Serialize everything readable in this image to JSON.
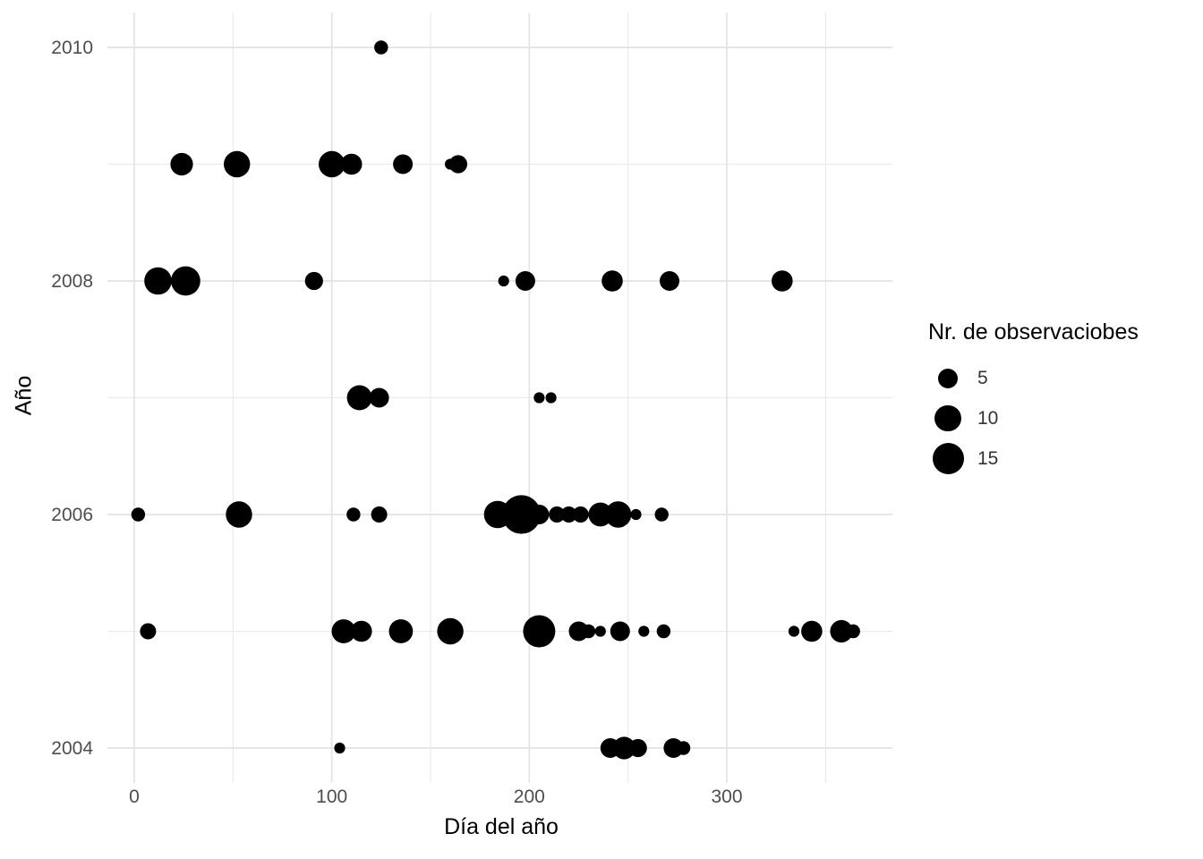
{
  "chart_data": {
    "type": "scatter",
    "title": "",
    "xlabel": "Día del año",
    "ylabel": "Año",
    "x_ticks": [
      0,
      100,
      200,
      300
    ],
    "x_minor_ticks": [
      50,
      150,
      250,
      350
    ],
    "y_ticks": [
      2004,
      2006,
      2008,
      2010
    ],
    "y_minor_ticks": [
      2005,
      2007,
      2009
    ],
    "xlim": [
      -14,
      384
    ],
    "ylim": [
      2003.7,
      2010.3
    ],
    "grid": "on",
    "legend": {
      "title": "Nr. de observaciobes",
      "position": "right",
      "sizes": [
        5,
        10,
        15
      ]
    },
    "colors": {
      "point": "#000000",
      "grid_major": "#E3E3E3",
      "grid_minor": "#E9E9E9",
      "tick_text": "#4D4D4D",
      "title_text": "#000000",
      "background": "#FFFFFF"
    },
    "points": [
      {
        "year": 2010,
        "day": 125,
        "obs": 2
      },
      {
        "year": 2009,
        "day": 24,
        "obs": 7
      },
      {
        "year": 2009,
        "day": 52,
        "obs": 10
      },
      {
        "year": 2009,
        "day": 100,
        "obs": 10
      },
      {
        "year": 2009,
        "day": 110,
        "obs": 6
      },
      {
        "year": 2009,
        "day": 136,
        "obs": 5
      },
      {
        "year": 2009,
        "day": 160,
        "obs": 1
      },
      {
        "year": 2009,
        "day": 164,
        "obs": 4
      },
      {
        "year": 2008,
        "day": 12,
        "obs": 11
      },
      {
        "year": 2008,
        "day": 26,
        "obs": 13
      },
      {
        "year": 2008,
        "day": 91,
        "obs": 4
      },
      {
        "year": 2008,
        "day": 187,
        "obs": 1
      },
      {
        "year": 2008,
        "day": 198,
        "obs": 5
      },
      {
        "year": 2008,
        "day": 242,
        "obs": 6
      },
      {
        "year": 2008,
        "day": 271,
        "obs": 5
      },
      {
        "year": 2008,
        "day": 328,
        "obs": 6
      },
      {
        "year": 2007,
        "day": 114,
        "obs": 9
      },
      {
        "year": 2007,
        "day": 124,
        "obs": 5
      },
      {
        "year": 2007,
        "day": 205,
        "obs": 1
      },
      {
        "year": 2007,
        "day": 211,
        "obs": 1
      },
      {
        "year": 2006,
        "day": 2,
        "obs": 2
      },
      {
        "year": 2006,
        "day": 53,
        "obs": 10
      },
      {
        "year": 2006,
        "day": 111,
        "obs": 2
      },
      {
        "year": 2006,
        "day": 124,
        "obs": 3
      },
      {
        "year": 2006,
        "day": 184,
        "obs": 11
      },
      {
        "year": 2006,
        "day": 196,
        "obs": 24
      },
      {
        "year": 2006,
        "day": 205,
        "obs": 5
      },
      {
        "year": 2006,
        "day": 214,
        "obs": 3
      },
      {
        "year": 2006,
        "day": 220,
        "obs": 3
      },
      {
        "year": 2006,
        "day": 226,
        "obs": 3
      },
      {
        "year": 2006,
        "day": 236,
        "obs": 8
      },
      {
        "year": 2006,
        "day": 245,
        "obs": 10
      },
      {
        "year": 2006,
        "day": 254,
        "obs": 1
      },
      {
        "year": 2006,
        "day": 267,
        "obs": 2
      },
      {
        "year": 2005,
        "day": 7,
        "obs": 3
      },
      {
        "year": 2005,
        "day": 106,
        "obs": 8
      },
      {
        "year": 2005,
        "day": 115,
        "obs": 6
      },
      {
        "year": 2005,
        "day": 135,
        "obs": 8
      },
      {
        "year": 2005,
        "day": 160,
        "obs": 10
      },
      {
        "year": 2005,
        "day": 205,
        "obs": 16
      },
      {
        "year": 2005,
        "day": 225,
        "obs": 5
      },
      {
        "year": 2005,
        "day": 230,
        "obs": 2
      },
      {
        "year": 2005,
        "day": 236,
        "obs": 1
      },
      {
        "year": 2005,
        "day": 246,
        "obs": 5
      },
      {
        "year": 2005,
        "day": 258,
        "obs": 1
      },
      {
        "year": 2005,
        "day": 268,
        "obs": 2
      },
      {
        "year": 2005,
        "day": 334,
        "obs": 1
      },
      {
        "year": 2005,
        "day": 343,
        "obs": 6
      },
      {
        "year": 2005,
        "day": 358,
        "obs": 7
      },
      {
        "year": 2005,
        "day": 364,
        "obs": 2
      },
      {
        "year": 2004,
        "day": 104,
        "obs": 1
      },
      {
        "year": 2004,
        "day": 241,
        "obs": 5
      },
      {
        "year": 2004,
        "day": 248,
        "obs": 7
      },
      {
        "year": 2004,
        "day": 255,
        "obs": 4
      },
      {
        "year": 2004,
        "day": 273,
        "obs": 5
      },
      {
        "year": 2004,
        "day": 278,
        "obs": 2
      }
    ]
  }
}
